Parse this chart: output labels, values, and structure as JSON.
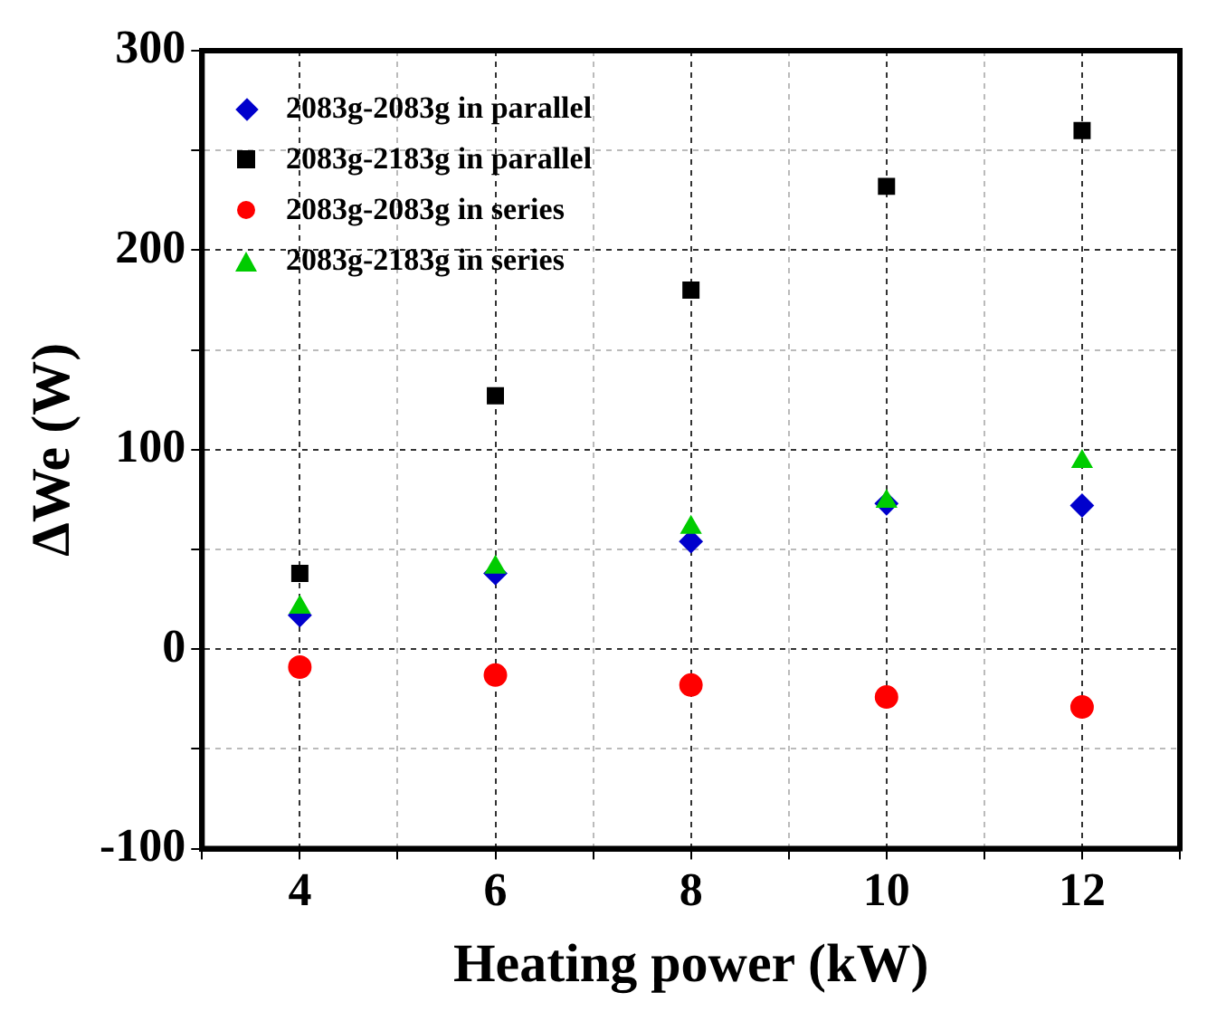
{
  "chart_data": {
    "type": "scatter",
    "xlabel": "Heating power (kW)",
    "ylabel": "ΔWe (W)",
    "xlim": [
      3,
      13
    ],
    "xticks": [
      {
        "value": 3,
        "label": null
      },
      4,
      {
        "value": 5,
        "label": null
      },
      6,
      {
        "value": 7,
        "label": null
      },
      8,
      {
        "value": 9,
        "label": null
      },
      10,
      {
        "value": 11,
        "label": null
      },
      12,
      {
        "value": 13,
        "label": null
      }
    ],
    "ylim": [
      -100,
      300
    ],
    "yticks": [
      -100,
      {
        "value": -50,
        "label": null
      },
      0,
      {
        "value": 50,
        "label": null
      },
      100,
      {
        "value": 150,
        "label": null
      },
      200,
      {
        "value": 250,
        "label": null
      },
      300
    ],
    "x": [
      4,
      6,
      8,
      10,
      12
    ],
    "grid": true,
    "line_style": "dashed",
    "legend": "top left",
    "series": [
      {
        "name": "2083g-2083g in parallel",
        "color": "#0000cc",
        "marker": "diamond",
        "values": [
          17,
          38,
          54,
          73,
          72
        ]
      },
      {
        "name": "2083g-2183g in parallel",
        "color": "#000000",
        "marker": "square",
        "values": [
          38,
          127,
          180,
          232,
          260
        ]
      },
      {
        "name": "2083g-2083g in series",
        "color": "#ff0000",
        "marker": "circle",
        "values": [
          -9,
          -13,
          -18,
          -24,
          -29
        ]
      },
      {
        "name": "2083g-2183g in series",
        "color": "#00cc00",
        "marker": "triangle",
        "values": [
          21,
          41,
          61,
          74,
          94
        ]
      }
    ]
  }
}
